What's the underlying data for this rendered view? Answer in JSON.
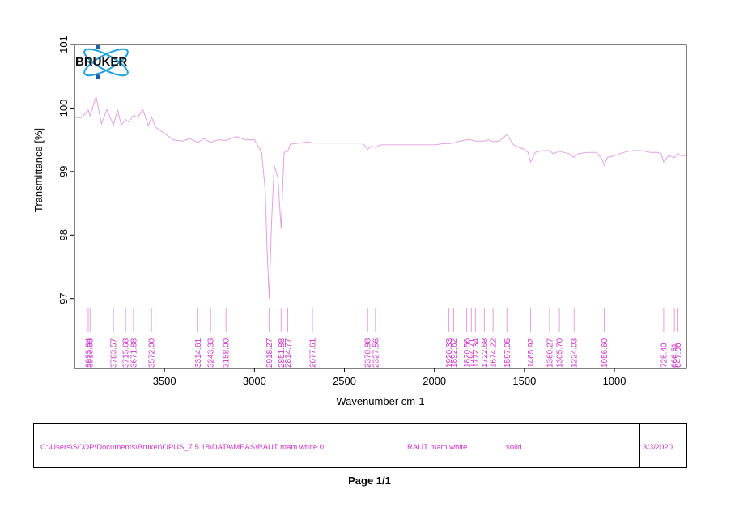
{
  "logo": {
    "text": "BRUKER"
  },
  "chart_data": {
    "type": "line",
    "xlabel": "Wavenumber cm-1",
    "ylabel": "Transmittance [%]",
    "xlim": [
      4000,
      600
    ],
    "ylim": [
      95.9,
      101
    ],
    "x_ticks": [
      3500,
      3000,
      2500,
      2000,
      1500,
      1000
    ],
    "y_ticks": [
      97,
      98,
      99,
      100,
      101
    ],
    "line_color": "#e2a2e2",
    "label_color": "#cc33cc",
    "series": [
      {
        "x": [
          4000,
          3960,
          3923.64,
          3913.53,
          3880,
          3850,
          3820,
          3783.57,
          3760,
          3740,
          3715.68,
          3700,
          3671.88,
          3650,
          3620,
          3590,
          3572,
          3550,
          3500,
          3450,
          3400,
          3360,
          3314.61,
          3280,
          3243.33,
          3200,
          3158,
          3100,
          3050,
          3000,
          2960,
          2940,
          2930,
          2918.27,
          2905,
          2890,
          2870,
          2851.88,
          2835,
          2814.77,
          2800,
          2750,
          2700,
          2677.61,
          2600,
          2500,
          2400,
          2370.98,
          2350,
          2327.56,
          2300,
          2200,
          2100,
          2000,
          1950,
          1920.33,
          1892.62,
          1860,
          1820.56,
          1794.71,
          1772.34,
          1760,
          1722.68,
          1700,
          1674.22,
          1640,
          1610,
          1597.05,
          1560,
          1530,
          1500,
          1480,
          1465.92,
          1440,
          1400,
          1360.27,
          1340,
          1305.7,
          1280,
          1250,
          1224.03,
          1200,
          1150,
          1100,
          1070,
          1056.6,
          1040,
          1000,
          950,
          900,
          850,
          800,
          760,
          740,
          726.4,
          700,
          666.51,
          660,
          647.06,
          630,
          600
        ],
        "y": [
          99.85,
          99.85,
          99.97,
          99.88,
          100.18,
          99.75,
          99.98,
          99.73,
          99.97,
          99.73,
          99.82,
          99.78,
          99.88,
          99.85,
          99.98,
          99.72,
          99.86,
          99.7,
          99.6,
          99.5,
          99.48,
          99.52,
          99.46,
          99.52,
          99.46,
          99.5,
          99.49,
          99.55,
          99.5,
          99.5,
          99.3,
          98.7,
          97.8,
          97.0,
          98.2,
          99.1,
          98.9,
          98.1,
          99.3,
          99.32,
          99.43,
          99.45,
          99.47,
          99.45,
          99.45,
          99.45,
          99.45,
          99.35,
          99.4,
          99.38,
          99.42,
          99.42,
          99.42,
          99.42,
          99.44,
          99.44,
          99.45,
          99.48,
          99.5,
          99.5,
          99.48,
          99.48,
          99.48,
          99.5,
          99.47,
          99.48,
          99.55,
          99.58,
          99.42,
          99.38,
          99.35,
          99.3,
          99.15,
          99.3,
          99.33,
          99.33,
          99.28,
          99.32,
          99.3,
          99.28,
          99.22,
          99.28,
          99.3,
          99.3,
          99.2,
          99.1,
          99.22,
          99.25,
          99.3,
          99.33,
          99.33,
          99.3,
          99.3,
          99.28,
          99.15,
          99.25,
          99.22,
          99.25,
          99.28,
          99.25,
          99.25
        ]
      }
    ],
    "peaks": [
      "3923.64",
      "3913.53",
      "3783.57",
      "3715.68",
      "3671.88",
      "3572.00",
      "3314.61",
      "3243.33",
      "3158.00",
      "2918.27",
      "2851.88",
      "2814.77",
      "2677.61",
      "2370.98",
      "2327.56",
      "1920.33",
      "1892.62",
      "1820.56",
      "1794.71",
      "1772.34",
      "1722.68",
      "1674.22",
      "1597.05",
      "1465.92",
      "1360.27",
      "1305.70",
      "1224.03",
      "1056.60",
      "726.40",
      "666.51",
      "647.06"
    ]
  },
  "footer": {
    "path": "C:\\Users\\SCOP\\Documents\\Bruker\\OPUS_7.5.18\\DATA\\MEAS\\RAUT mam white.0",
    "sample": "RAUT mam white",
    "form": "solid",
    "date": "3/3/2020"
  },
  "page_label": "Page 1/1"
}
